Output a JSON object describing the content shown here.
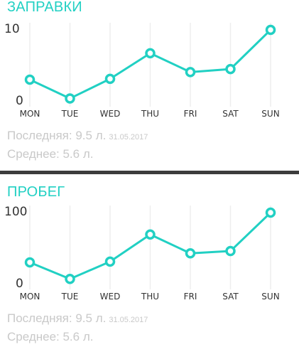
{
  "accent_color": "#21d0c3",
  "gridline_color": "#eeeeee",
  "axis_text_color": "#333333",
  "cards": [
    {
      "title": "ЗАПРАВКИ",
      "last_label": "Последняя: 9.5 л.",
      "last_date": "31.05.2017",
      "avg_label": "Среднее: 5.6 л."
    },
    {
      "title": "ПРОБЕГ",
      "last_label": "Последняя: 9.5 л.",
      "last_date": "31.05.2017",
      "avg_label": "Среднее: 5.6 л."
    }
  ],
  "chart_data": [
    {
      "type": "line",
      "categories": [
        "MON",
        "TUE",
        "WED",
        "THU",
        "FRI",
        "SAT",
        "SUN"
      ],
      "y_tick_labels": [
        "0",
        "10"
      ],
      "ylim": [
        0,
        10
      ],
      "values": [
        3.4,
        0.9,
        3.5,
        6.9,
        4.4,
        4.8,
        10
      ],
      "grid": "vertical"
    },
    {
      "type": "line",
      "categories": [
        "MON",
        "TUE",
        "WED",
        "THU",
        "FRI",
        "SAT",
        "SUN"
      ],
      "y_tick_labels": [
        "0",
        "100"
      ],
      "ylim": [
        0,
        100
      ],
      "values": [
        34,
        12,
        35,
        71,
        46,
        49,
        100
      ],
      "grid": "vertical"
    }
  ]
}
